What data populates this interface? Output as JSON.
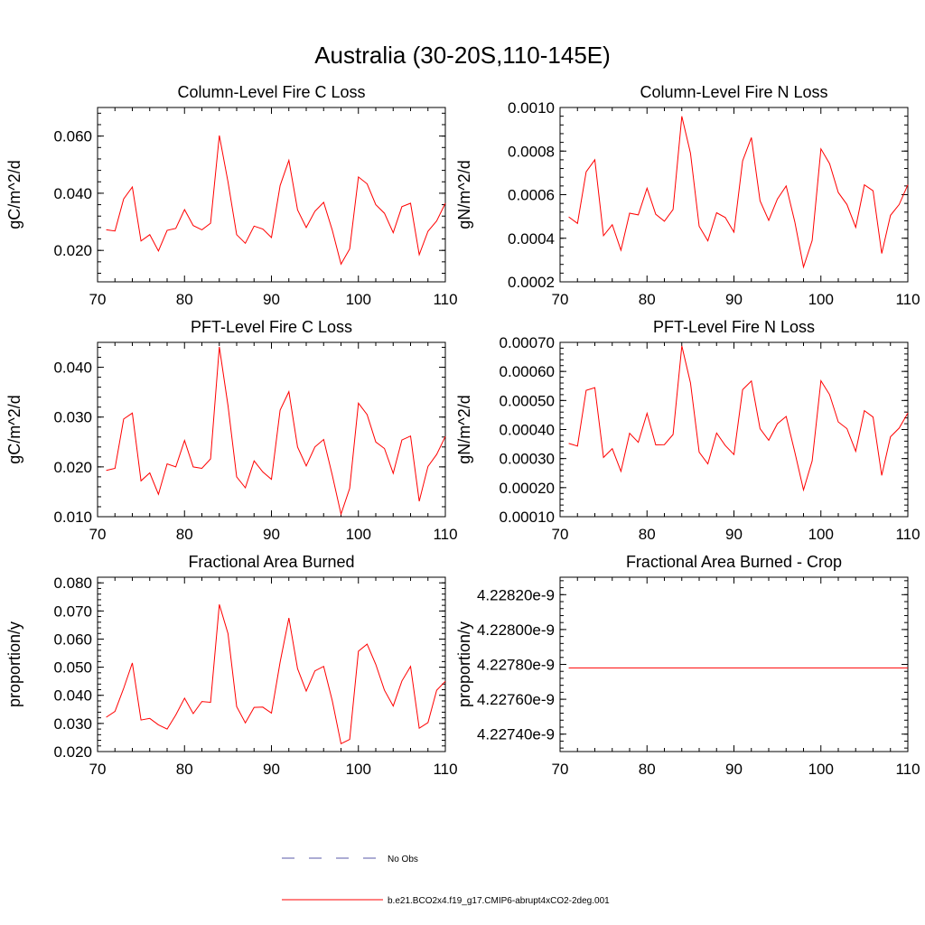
{
  "figure": {
    "title": "Australia (30-20S,110-145E)"
  },
  "legend": [
    {
      "label": "No Obs",
      "color": "#5a5aa8",
      "dash": true
    },
    {
      "label": "b.e21.BCO2x4.f19_g17.CMIP6-abrupt4xCO2-2deg.001",
      "color": "#ff0000",
      "dash": false
    }
  ],
  "chart_data": [
    {
      "type": "line",
      "title": "Column-Level Fire C Loss",
      "ylabel": "gC/m^2/d",
      "xlim": [
        70,
        110
      ],
      "ylim": [
        0.009,
        0.07
      ],
      "xticks": [
        70,
        80,
        90,
        100,
        110
      ],
      "yticks": [
        0.02,
        0.04,
        0.06
      ],
      "ytick_labels": [
        "0.020",
        "0.040",
        "0.060"
      ],
      "color": "#ff0000",
      "series": [
        {
          "x": [
            71,
            72,
            73,
            74,
            75,
            76,
            77,
            78,
            79,
            80,
            81,
            82,
            83,
            84,
            85,
            86,
            87,
            88,
            89,
            90,
            91,
            92,
            93,
            94,
            95,
            96,
            97,
            98,
            99,
            100,
            101,
            102,
            103,
            104,
            105,
            106,
            107,
            108,
            109,
            110
          ],
          "values": [
            0.0272,
            0.0268,
            0.038,
            0.0422,
            0.0233,
            0.0255,
            0.0198,
            0.027,
            0.0277,
            0.0343,
            0.0287,
            0.0272,
            0.0295,
            0.0602,
            0.044,
            0.0255,
            0.0225,
            0.0285,
            0.0275,
            0.0245,
            0.0427,
            0.0515,
            0.0342,
            0.028,
            0.0337,
            0.0368,
            0.027,
            0.0152,
            0.0205,
            0.0457,
            0.0433,
            0.036,
            0.033,
            0.0262,
            0.0353,
            0.0365,
            0.0185,
            0.0267,
            0.0303,
            0.0365
          ]
        }
      ]
    },
    {
      "type": "line",
      "title": "Column-Level Fire N Loss",
      "ylabel": "gN/m^2/d",
      "xlim": [
        70,
        110
      ],
      "ylim": [
        0.0002,
        0.001
      ],
      "xticks": [
        70,
        80,
        90,
        100,
        110
      ],
      "yticks": [
        0.0002,
        0.0004,
        0.0006,
        0.0008,
        0.001
      ],
      "ytick_labels": [
        "0.0002",
        "0.0004",
        "0.0006",
        "0.0008",
        "0.0010"
      ],
      "color": "#ff0000",
      "series": [
        {
          "x": [
            71,
            72,
            73,
            74,
            75,
            76,
            77,
            78,
            79,
            80,
            81,
            82,
            83,
            84,
            85,
            86,
            87,
            88,
            89,
            90,
            91,
            92,
            93,
            94,
            95,
            96,
            97,
            98,
            99,
            100,
            101,
            102,
            103,
            104,
            105,
            106,
            107,
            108,
            109,
            110
          ],
          "values": [
            0.000498,
            0.000468,
            0.000705,
            0.00076,
            0.000412,
            0.000462,
            0.000345,
            0.000515,
            0.000507,
            0.00063,
            0.00051,
            0.000478,
            0.000532,
            0.00096,
            0.00079,
            0.000455,
            0.000388,
            0.000517,
            0.000495,
            0.000428,
            0.000755,
            0.000862,
            0.000572,
            0.000482,
            0.00058,
            0.00064,
            0.000475,
            0.000268,
            0.00039,
            0.00081,
            0.000742,
            0.00061,
            0.000555,
            0.00045,
            0.000645,
            0.000618,
            0.00033,
            0.000505,
            0.000555,
            0.000645
          ]
        }
      ]
    },
    {
      "type": "line",
      "title": "PFT-Level Fire C Loss",
      "ylabel": "gC/m^2/d",
      "xlim": [
        70,
        110
      ],
      "ylim": [
        0.01,
        0.045
      ],
      "xticks": [
        70,
        80,
        90,
        100,
        110
      ],
      "yticks": [
        0.01,
        0.02,
        0.03,
        0.04
      ],
      "ytick_labels": [
        "0.010",
        "0.020",
        "0.030",
        "0.040"
      ],
      "color": "#ff0000",
      "series": [
        {
          "x": [
            71,
            72,
            73,
            74,
            75,
            76,
            77,
            78,
            79,
            80,
            81,
            82,
            83,
            84,
            85,
            86,
            87,
            88,
            89,
            90,
            91,
            92,
            93,
            94,
            95,
            96,
            97,
            98,
            99,
            100,
            101,
            102,
            103,
            104,
            105,
            106,
            107,
            108,
            109,
            110
          ],
          "values": [
            0.0193,
            0.0197,
            0.0296,
            0.0308,
            0.0172,
            0.0188,
            0.0145,
            0.0206,
            0.02,
            0.0253,
            0.02,
            0.0197,
            0.0216,
            0.0441,
            0.0323,
            0.018,
            0.0158,
            0.0212,
            0.019,
            0.0175,
            0.0314,
            0.0351,
            0.024,
            0.0202,
            0.024,
            0.0255,
            0.0183,
            0.0105,
            0.0157,
            0.0328,
            0.0305,
            0.025,
            0.0237,
            0.0187,
            0.0254,
            0.0262,
            0.0131,
            0.0201,
            0.0225,
            0.0261
          ]
        }
      ]
    },
    {
      "type": "line",
      "title": "PFT-Level Fire N Loss",
      "ylabel": "gN/m^2/d",
      "xlim": [
        70,
        110
      ],
      "ylim": [
        0.0001,
        0.0007
      ],
      "xticks": [
        70,
        80,
        90,
        100,
        110
      ],
      "yticks": [
        0.0001,
        0.0002,
        0.0003,
        0.0004,
        0.0005,
        0.0006,
        0.0007
      ],
      "ytick_labels": [
        "0.00010",
        "0.00020",
        "0.00030",
        "0.00040",
        "0.00050",
        "0.00060",
        "0.00070"
      ],
      "color": "#ff0000",
      "series": [
        {
          "x": [
            71,
            72,
            73,
            74,
            75,
            76,
            77,
            78,
            79,
            80,
            81,
            82,
            83,
            84,
            85,
            86,
            87,
            88,
            89,
            90,
            91,
            92,
            93,
            94,
            95,
            96,
            97,
            98,
            99,
            100,
            101,
            102,
            103,
            104,
            105,
            106,
            107,
            108,
            109,
            110
          ],
          "values": [
            0.000352,
            0.000343,
            0.000535,
            0.000544,
            0.000304,
            0.000334,
            0.000256,
            0.000387,
            0.000356,
            0.000456,
            0.000347,
            0.000348,
            0.000383,
            0.000688,
            0.00056,
            0.000322,
            0.000282,
            0.000388,
            0.000345,
            0.000314,
            0.000537,
            0.000567,
            0.000403,
            0.000363,
            0.00042,
            0.000445,
            0.000322,
            0.000192,
            0.000292,
            0.000568,
            0.00052,
            0.000426,
            0.000403,
            0.000325,
            0.000465,
            0.000443,
            0.000242,
            0.000375,
            0.000405,
            0.000457
          ]
        }
      ]
    },
    {
      "type": "line",
      "title": "Fractional Area Burned",
      "ylabel": "proportion/y",
      "xlim": [
        70,
        110
      ],
      "ylim": [
        0.02,
        0.082
      ],
      "xticks": [
        70,
        80,
        90,
        100,
        110
      ],
      "yticks": [
        0.02,
        0.03,
        0.04,
        0.05,
        0.06,
        0.07,
        0.08
      ],
      "ytick_labels": [
        "0.020",
        "0.030",
        "0.040",
        "0.050",
        "0.060",
        "0.070",
        "0.080"
      ],
      "color": "#ff0000",
      "series": [
        {
          "x": [
            71,
            72,
            73,
            74,
            75,
            76,
            77,
            78,
            79,
            80,
            81,
            82,
            83,
            84,
            85,
            86,
            87,
            88,
            89,
            90,
            91,
            92,
            93,
            94,
            95,
            96,
            97,
            98,
            99,
            100,
            101,
            102,
            103,
            104,
            105,
            106,
            107,
            108,
            109,
            110
          ],
          "values": [
            0.0322,
            0.0343,
            0.0425,
            0.0515,
            0.0312,
            0.0318,
            0.0295,
            0.028,
            0.033,
            0.039,
            0.0335,
            0.0378,
            0.0375,
            0.0723,
            0.062,
            0.036,
            0.0302,
            0.0357,
            0.0358,
            0.0337,
            0.0518,
            0.0675,
            0.0495,
            0.0415,
            0.0487,
            0.0503,
            0.038,
            0.0228,
            0.0243,
            0.0557,
            0.0582,
            0.051,
            0.0418,
            0.0362,
            0.0451,
            0.0503,
            0.0283,
            0.0303,
            0.0418,
            0.045
          ]
        }
      ]
    },
    {
      "type": "line",
      "title": "Fractional Area Burned - Crop",
      "ylabel": "proportion/y",
      "xlim": [
        70,
        110
      ],
      "ylim": [
        4.2273e-09,
        4.2283e-09
      ],
      "xticks": [
        70,
        80,
        90,
        100,
        110
      ],
      "yticks": [
        4.2274e-09,
        4.2276e-09,
        4.2278e-09,
        4.228e-09,
        4.2282e-09
      ],
      "ytick_labels": [
        "4.22740e-9",
        "4.22760e-9",
        "4.22780e-9",
        "4.22800e-9",
        "4.22820e-9"
      ],
      "color": "#ff0000",
      "series": [
        {
          "x": [
            71,
            110
          ],
          "values": [
            4.22778e-09,
            4.22778e-09
          ]
        }
      ]
    }
  ]
}
